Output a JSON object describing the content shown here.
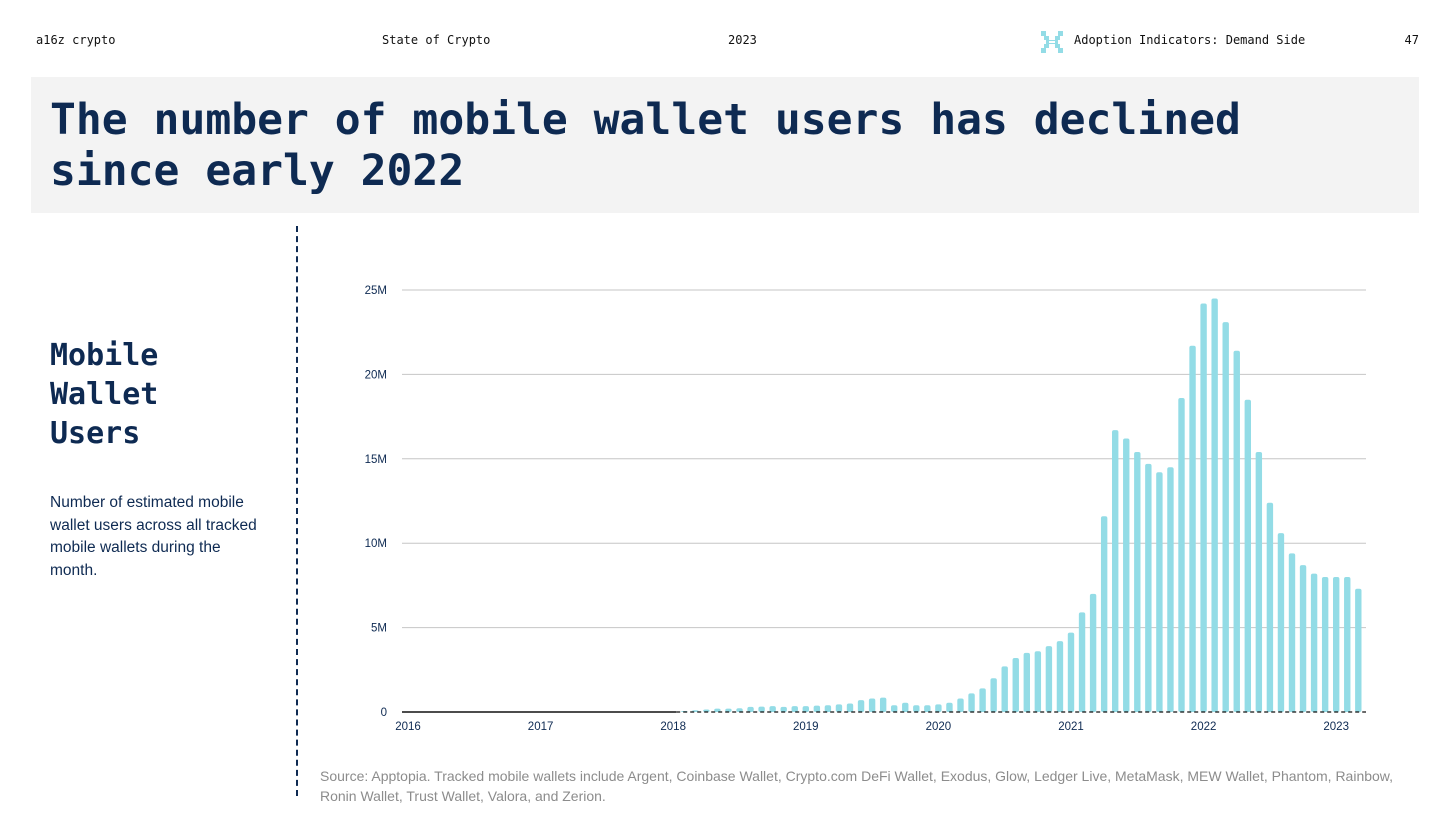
{
  "header": {
    "brand": "a16z crypto",
    "deck_title": "State of Crypto",
    "year": "2023",
    "section_icon": "pixel-logo-icon",
    "section": "Adoption Indicators: Demand Side",
    "page_number": "47"
  },
  "title": "The number of mobile wallet users has declined since early 2022",
  "sidebar": {
    "heading": "Mobile\nWallet\nUsers",
    "description": "Number of estimated mobile wallet users across all tracked mobile wallets during the month."
  },
  "source": "Source: Apptopia. Tracked mobile wallets include Argent, Coinbase Wallet, Crypto.com DeFi Wallet, Exodus, Glow, Ledger Live, MetaMask, MEW Wallet, Phantom, Rainbow, Ronin Wallet, Trust Wallet, Valora, and Zerion.",
  "colors": {
    "bar": "#93dce6",
    "text": "#0e2a52",
    "grid": "#c6c6c6",
    "title_band": "#f3f3f3",
    "source": "#8c8c8c"
  },
  "chart_data": {
    "type": "bar",
    "title": "",
    "xlabel": "",
    "ylabel": "",
    "x_start": "2016-01",
    "x_end": "2023-03",
    "x_ticks": [
      "2016",
      "2017",
      "2018",
      "2019",
      "2020",
      "2021",
      "2022",
      "2023"
    ],
    "y_ticks": [
      "0",
      "5M",
      "10M",
      "15M",
      "20M",
      "25M"
    ],
    "ylim": [
      0,
      25000000
    ],
    "grid": true,
    "legend": "none",
    "series": [
      {
        "months": [
          "2018-02",
          "2018-03",
          "2018-04",
          "2018-05",
          "2018-06",
          "2018-07",
          "2018-08",
          "2018-09",
          "2018-10",
          "2018-11",
          "2018-12",
          "2019-01",
          "2019-02",
          "2019-03",
          "2019-04",
          "2019-05",
          "2019-06",
          "2019-07",
          "2019-08",
          "2019-09",
          "2019-10",
          "2019-11",
          "2019-12",
          "2020-01",
          "2020-02",
          "2020-03",
          "2020-04",
          "2020-05",
          "2020-06",
          "2020-07",
          "2020-08",
          "2020-09",
          "2020-10",
          "2020-11",
          "2020-12",
          "2021-01",
          "2021-02",
          "2021-03",
          "2021-04",
          "2021-05",
          "2021-06",
          "2021-07",
          "2021-08",
          "2021-09",
          "2021-10",
          "2021-11",
          "2021-12",
          "2022-01",
          "2022-02",
          "2022-03",
          "2022-04",
          "2022-05",
          "2022-06",
          "2022-07",
          "2022-08",
          "2022-09",
          "2022-10",
          "2022-11",
          "2022-12",
          "2023-01",
          "2023-02",
          "2023-03"
        ],
        "values": [
          50000,
          100000,
          150000,
          200000,
          200000,
          220000,
          300000,
          320000,
          350000,
          300000,
          350000,
          350000,
          380000,
          400000,
          450000,
          500000,
          700000,
          800000,
          850000,
          400000,
          550000,
          400000,
          400000,
          450000,
          550000,
          800000,
          1100000,
          1400000,
          2000000,
          2700000,
          3200000,
          3500000,
          3600000,
          3900000,
          4200000,
          4700000,
          5900000,
          7000000,
          11600000,
          16700000,
          16200000,
          15400000,
          14700000,
          14200000,
          14500000,
          18600000,
          21700000,
          24200000,
          24500000,
          23100000,
          21400000,
          18500000,
          15400000,
          12400000,
          10600000,
          9400000,
          8700000,
          8200000,
          8000000,
          8000000,
          8000000,
          7300000
        ]
      }
    ]
  }
}
